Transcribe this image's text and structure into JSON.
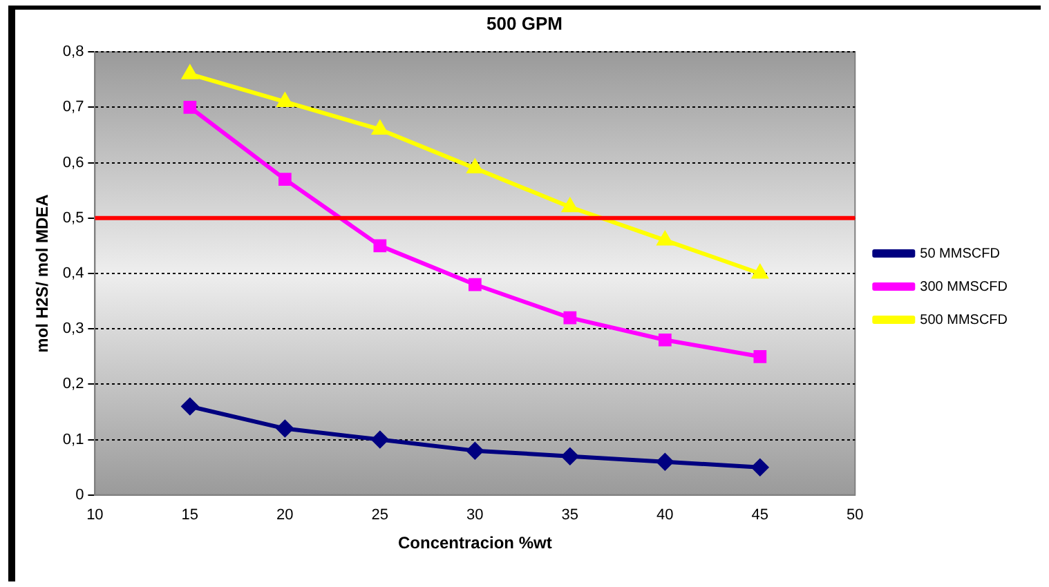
{
  "chart_data": {
    "type": "line",
    "title": "500 GPM",
    "xlabel": "Concentracion %wt",
    "ylabel": "mol H2S/ mol MDEA",
    "x": [
      15,
      20,
      25,
      30,
      35,
      40,
      45
    ],
    "xlim": [
      10,
      50
    ],
    "xticks": [
      10,
      15,
      20,
      25,
      30,
      35,
      40,
      45,
      50
    ],
    "ylim": [
      0,
      0.8
    ],
    "yticks": [
      {
        "value": 0,
        "label": "0"
      },
      {
        "value": 0.1,
        "label": "0,1"
      },
      {
        "value": 0.2,
        "label": "0,2"
      },
      {
        "value": 0.3,
        "label": "0,3"
      },
      {
        "value": 0.4,
        "label": "0,4"
      },
      {
        "value": 0.5,
        "label": "0,5"
      },
      {
        "value": 0.6,
        "label": "0,6"
      },
      {
        "value": 0.7,
        "label": "0,7"
      },
      {
        "value": 0.8,
        "label": "0,8"
      }
    ],
    "grid": "y",
    "legend": "right",
    "line_style": "solid",
    "series": [
      {
        "name": "50 MMSCFD",
        "color": "#000080",
        "marker": "diamond",
        "values": [
          0.16,
          0.12,
          0.1,
          0.08,
          0.07,
          0.06,
          0.05
        ]
      },
      {
        "name": "300 MMSCFD",
        "color": "#ff00ff",
        "marker": "square",
        "values": [
          0.7,
          0.57,
          0.45,
          0.38,
          0.32,
          0.28,
          0.25
        ]
      },
      {
        "name": "500 MMSCFD",
        "color": "#ffff00",
        "marker": "triangle",
        "values": [
          0.76,
          0.71,
          0.66,
          0.59,
          0.52,
          0.46,
          0.4
        ]
      }
    ],
    "ref_lines": [
      {
        "axis": "y",
        "value": 0.5,
        "label": null,
        "color": "#ff0000"
      }
    ]
  }
}
